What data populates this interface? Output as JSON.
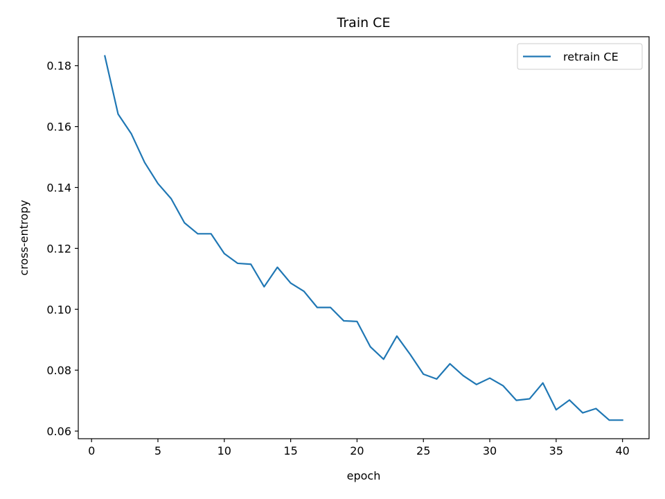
{
  "chart_data": {
    "type": "line",
    "title": "Train CE",
    "xlabel": "epoch",
    "ylabel": "cross-entropy",
    "xlim": [
      -1,
      42
    ],
    "ylim": [
      0.0575,
      0.1895
    ],
    "xticks": [
      0,
      5,
      10,
      15,
      20,
      25,
      30,
      35,
      40
    ],
    "yticks": [
      0.06,
      0.08,
      0.1,
      0.12,
      0.14,
      0.16,
      0.18
    ],
    "ytick_labels": [
      "0.06",
      "0.08",
      "0.10",
      "0.12",
      "0.14",
      "0.16",
      "0.18"
    ],
    "grid": false,
    "legend": {
      "placement": "top-right"
    },
    "series": [
      {
        "name": "retrain CE",
        "color": "#1f77b4",
        "x": [
          1,
          2,
          3,
          4,
          5,
          6,
          7,
          8,
          9,
          10,
          11,
          12,
          13,
          14,
          15,
          16,
          17,
          18,
          19,
          20,
          21,
          22,
          23,
          24,
          25,
          26,
          27,
          28,
          29,
          30,
          31,
          32,
          33,
          34,
          35,
          36,
          37,
          38,
          39,
          40
        ],
        "y": [
          0.1832,
          0.1641,
          0.1576,
          0.1482,
          0.1413,
          0.1363,
          0.1284,
          0.1248,
          0.1248,
          0.1183,
          0.1151,
          0.1148,
          0.1074,
          0.1138,
          0.1086,
          0.1059,
          0.1006,
          0.1006,
          0.0962,
          0.096,
          0.0877,
          0.0836,
          0.0912,
          0.0852,
          0.0787,
          0.0771,
          0.0821,
          0.0782,
          0.0753,
          0.0774,
          0.0749,
          0.0701,
          0.0706,
          0.0758,
          0.067,
          0.0702,
          0.066,
          0.0674,
          0.0636,
          0.0636
        ]
      }
    ]
  }
}
